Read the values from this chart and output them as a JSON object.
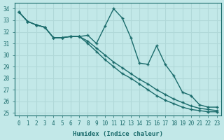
{
  "xlabel": "Humidex (Indice chaleur)",
  "xlim": [
    -0.5,
    23.5
  ],
  "ylim": [
    24.8,
    34.5
  ],
  "yticks": [
    25,
    26,
    27,
    28,
    29,
    30,
    31,
    32,
    33,
    34
  ],
  "xticks": [
    0,
    1,
    2,
    3,
    4,
    5,
    6,
    7,
    8,
    9,
    10,
    11,
    12,
    13,
    14,
    15,
    16,
    17,
    18,
    19,
    20,
    21,
    22,
    23
  ],
  "bg_color": "#c2e8e8",
  "grid_color": "#b0d8d8",
  "line_color": "#1a6b6b",
  "line1": [
    33.7,
    32.9,
    32.6,
    32.4,
    31.5,
    31.5,
    31.6,
    31.6,
    31.7,
    31.0,
    32.5,
    34.0,
    33.2,
    31.5,
    29.3,
    29.2,
    30.8,
    29.2,
    28.2,
    26.8,
    26.5,
    25.7,
    25.5,
    25.5
  ],
  "line2": [
    33.7,
    32.9,
    32.6,
    32.4,
    31.5,
    31.5,
    31.6,
    31.6,
    31.0,
    30.3,
    29.6,
    29.0,
    28.4,
    28.0,
    27.5,
    27.0,
    26.5,
    26.1,
    25.8,
    25.5,
    25.3,
    25.2,
    25.1,
    25.1
  ],
  "line3": [
    33.7,
    32.9,
    32.6,
    32.4,
    31.5,
    31.5,
    31.6,
    31.6,
    31.2,
    30.6,
    30.0,
    29.4,
    28.9,
    28.4,
    27.9,
    27.5,
    27.0,
    26.6,
    26.2,
    25.9,
    25.6,
    25.4,
    25.3,
    25.2
  ]
}
